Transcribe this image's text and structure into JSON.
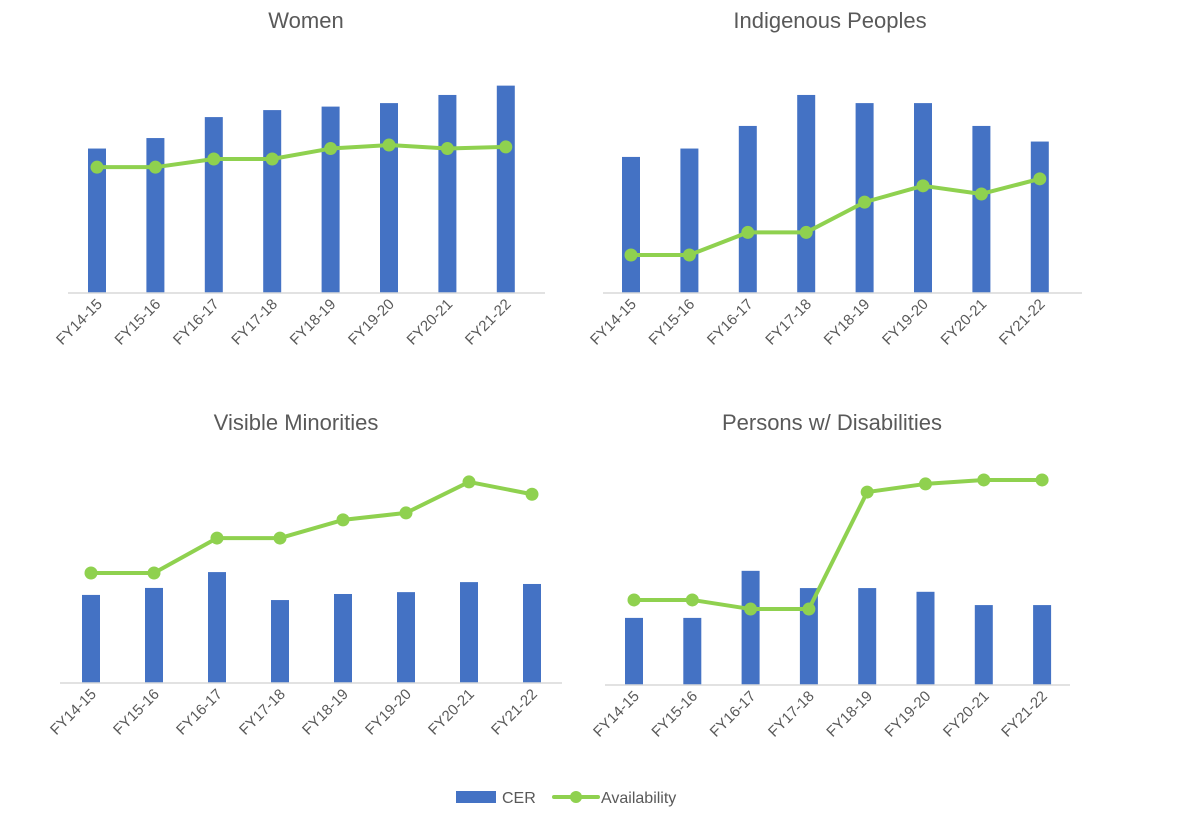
{
  "colors": {
    "bar": "#4472C4",
    "line": "#8FD14F",
    "axis": "#D9D9D9",
    "text": "#595959"
  },
  "legend": {
    "bar_label": "CER",
    "line_label": "Availability",
    "placement": "bottom"
  },
  "chart_data": [
    {
      "type": "bar+line",
      "title": "Women",
      "categories": [
        "FY14-15",
        "FY15-16",
        "FY16-17",
        "FY17-18",
        "FY18-19",
        "FY19-20",
        "FY20-21",
        "FY21-22"
      ],
      "ylim": [
        0,
        100
      ],
      "grid": false,
      "series": [
        {
          "name": "CER",
          "type": "bar",
          "values": [
            62,
            66.5,
            75.5,
            78.5,
            80,
            81.5,
            85,
            89
          ]
        },
        {
          "name": "Availability",
          "type": "line",
          "values": [
            54,
            54,
            57.5,
            57.5,
            62,
            63.5,
            62,
            62.7
          ]
        }
      ]
    },
    {
      "type": "bar+line",
      "title": "Indigenous Peoples",
      "categories": [
        "FY14-15",
        "FY15-16",
        "FY16-17",
        "FY17-18",
        "FY18-19",
        "FY19-20",
        "FY20-21",
        "FY21-22"
      ],
      "ylim": [
        0,
        100
      ],
      "grid": false,
      "series": [
        {
          "name": "CER",
          "type": "bar",
          "values": [
            58.4,
            62,
            71.7,
            85,
            81.5,
            81.5,
            71.7,
            65
          ]
        },
        {
          "name": "Availability",
          "type": "line",
          "values": [
            16.3,
            16.3,
            26,
            26,
            39,
            46,
            42.5,
            49
          ]
        }
      ]
    },
    {
      "type": "bar+line",
      "title": "Visible Minorities",
      "categories": [
        "FY14-15",
        "FY15-16",
        "FY16-17",
        "FY17-18",
        "FY18-19",
        "FY19-20",
        "FY20-21",
        "FY21-22"
      ],
      "ylim": [
        0,
        100
      ],
      "grid": false,
      "series": [
        {
          "name": "CER",
          "type": "bar",
          "values": [
            37.8,
            40.8,
            47.6,
            35.6,
            38.2,
            39,
            43.3,
            42.5
          ]
        },
        {
          "name": "Availability",
          "type": "line",
          "values": [
            47.2,
            47.2,
            62.2,
            62.2,
            70,
            73,
            86.3,
            81
          ]
        }
      ]
    },
    {
      "type": "bar+line",
      "title": "Persons w/ Disabilities",
      "categories": [
        "FY14-15",
        "FY15-16",
        "FY16-17",
        "FY17-18",
        "FY18-19",
        "FY19-20",
        "FY20-21",
        "FY21-22"
      ],
      "ylim": [
        0,
        100
      ],
      "grid": false,
      "series": [
        {
          "name": "CER",
          "type": "bar",
          "values": [
            28.8,
            28.8,
            49,
            41.6,
            41.6,
            40,
            34.3,
            34.3
          ]
        },
        {
          "name": "Availability",
          "type": "line",
          "values": [
            36.5,
            36.5,
            32.6,
            32.6,
            82.8,
            86.3,
            88,
            88
          ]
        }
      ]
    }
  ]
}
